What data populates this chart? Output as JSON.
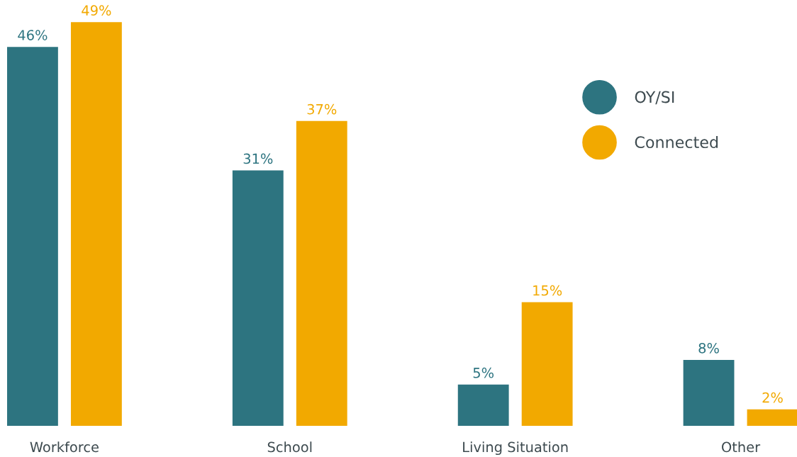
{
  "chart_data": {
    "type": "bar",
    "categories": [
      "Workforce",
      "School",
      "Living Situation",
      "Other"
    ],
    "series": [
      {
        "name": "OY/SI",
        "color": "#2d7480",
        "values": [
          46,
          31,
          5,
          8
        ],
        "value_labels": [
          "46%",
          "31%",
          "5%",
          "8%"
        ]
      },
      {
        "name": "Connected",
        "color": "#f2a900",
        "values": [
          49,
          37,
          15,
          2
        ],
        "value_labels": [
          "49%",
          "37%",
          "15%",
          "2%"
        ]
      }
    ],
    "legend": "top right",
    "grid": false,
    "tick_labels": "x"
  }
}
